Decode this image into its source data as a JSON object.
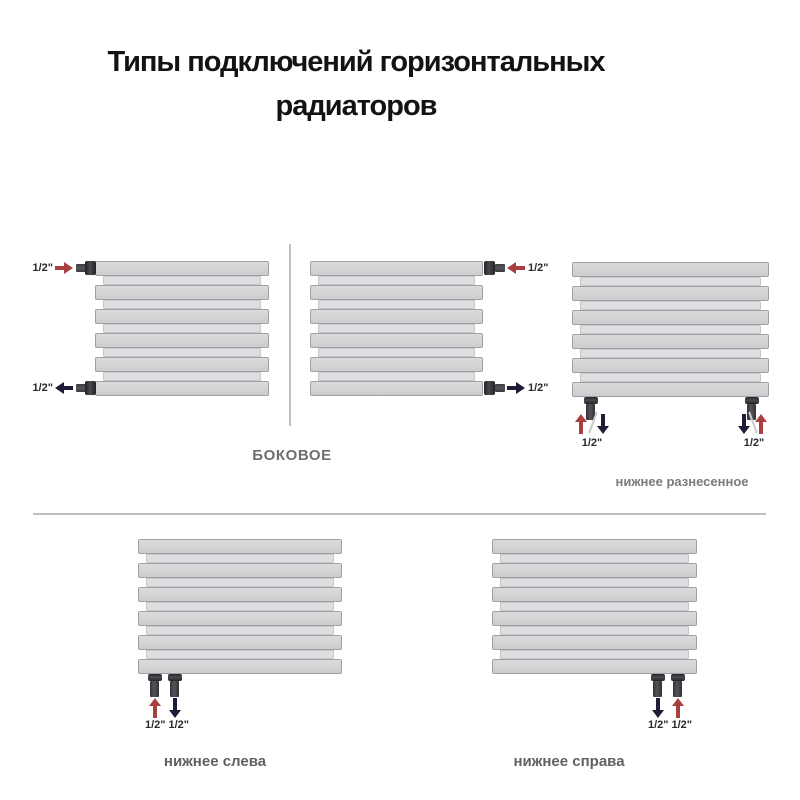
{
  "title": {
    "line1": "Типы подключений горизонтальных",
    "line2": "радиаторов"
  },
  "captions": {
    "side": "БОКОВОЕ",
    "bottom_spread": "нижнее разнесенное",
    "bottom_left": "нижнее слева",
    "bottom_right": "нижнее справа"
  },
  "labels": {
    "pipe_size": "1/2\""
  },
  "colors": {
    "inlet_arrow": "#a84040",
    "outlet_arrow": "#1d1d38",
    "radiator_border": "#9fa0a3",
    "divider": "#c0c0c3"
  },
  "radiator": {
    "slat_count": 6
  }
}
